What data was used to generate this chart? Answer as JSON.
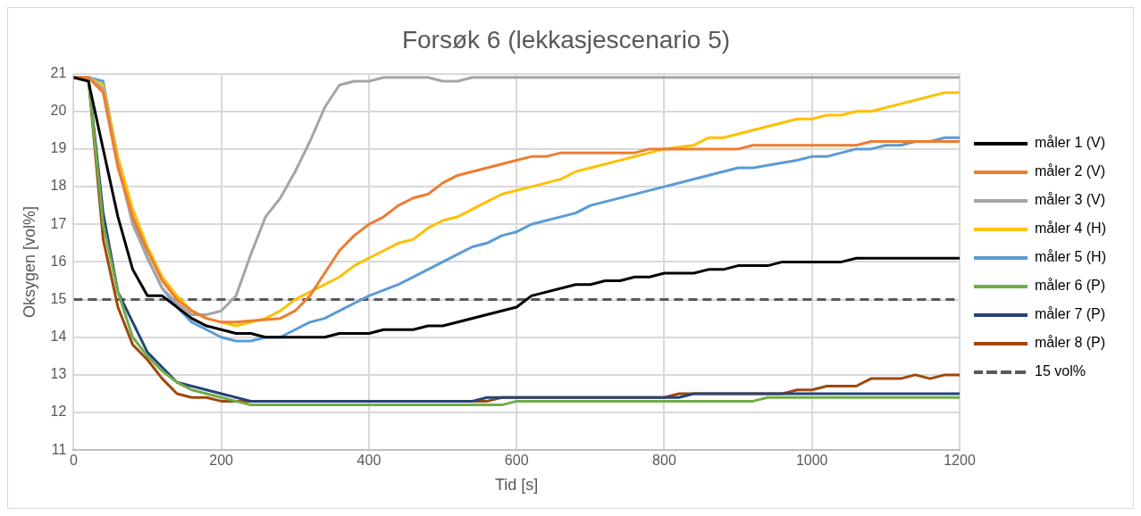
{
  "chart_data": {
    "type": "line",
    "title": "Forsøk 6 (lekkasjescenario 5)",
    "xlabel": "Tid [s]",
    "ylabel": "Oksygen [vol%]",
    "xlim": [
      0,
      1200
    ],
    "xticks": [
      0,
      200,
      400,
      600,
      800,
      1000,
      1200
    ],
    "ylim": [
      11,
      21
    ],
    "yticks": [
      11,
      12,
      13,
      14,
      15,
      16,
      17,
      18,
      19,
      20,
      21
    ],
    "grid": true,
    "legend": "right",
    "marker": "none",
    "line_style": "solid",
    "series": [
      {
        "name": "måler 1 (V)",
        "color": "#000000",
        "x": [
          0,
          20,
          40,
          60,
          80,
          100,
          120,
          140,
          160,
          180,
          200,
          220,
          240,
          260,
          280,
          340,
          360,
          400,
          420,
          460,
          480,
          500,
          600,
          620,
          680,
          700,
          720,
          740,
          760,
          780,
          800,
          840,
          860,
          880,
          900,
          940,
          960,
          1040,
          1060,
          1200
        ],
        "values": [
          20.9,
          20.8,
          19.0,
          17.2,
          15.8,
          15.1,
          15.1,
          14.8,
          14.5,
          14.3,
          14.2,
          14.1,
          14.1,
          14.0,
          14.0,
          14.0,
          14.1,
          14.1,
          14.2,
          14.2,
          14.3,
          14.3,
          14.8,
          15.1,
          15.4,
          15.4,
          15.5,
          15.5,
          15.6,
          15.6,
          15.7,
          15.7,
          15.8,
          15.8,
          15.9,
          15.9,
          16.0,
          16.0,
          16.1,
          16.1
        ]
      },
      {
        "name": "måler 2 (V)",
        "color": "#ed7d31",
        "x": [
          0,
          20,
          40,
          60,
          80,
          100,
          120,
          140,
          160,
          180,
          200,
          220,
          280,
          300,
          320,
          340,
          360,
          380,
          400,
          420,
          440,
          460,
          480,
          500,
          520,
          560,
          600,
          620,
          640,
          660,
          760,
          780,
          900,
          920,
          1060,
          1080,
          1200
        ],
        "values": [
          20.9,
          20.9,
          20.5,
          18.5,
          17.2,
          16.3,
          15.5,
          15.0,
          14.7,
          14.5,
          14.4,
          14.4,
          14.5,
          14.7,
          15.1,
          15.7,
          16.3,
          16.7,
          17.0,
          17.2,
          17.5,
          17.7,
          17.8,
          18.1,
          18.3,
          18.5,
          18.7,
          18.8,
          18.8,
          18.9,
          18.9,
          19.0,
          19.0,
          19.1,
          19.1,
          19.2,
          19.2
        ]
      },
      {
        "name": "måler 3 (V)",
        "color": "#a5a5a5",
        "x": [
          0,
          20,
          40,
          60,
          80,
          100,
          120,
          140,
          160,
          180,
          200,
          220,
          240,
          260,
          280,
          300,
          320,
          340,
          360,
          380,
          400,
          420,
          480,
          500,
          520,
          540,
          1200
        ],
        "values": [
          20.9,
          20.9,
          20.6,
          18.6,
          17.0,
          16.1,
          15.3,
          14.9,
          14.6,
          14.6,
          14.7,
          15.1,
          16.2,
          17.2,
          17.7,
          18.4,
          19.2,
          20.1,
          20.7,
          20.8,
          20.8,
          20.9,
          20.9,
          20.8,
          20.8,
          20.9,
          20.9
        ]
      },
      {
        "name": "måler 4 (H)",
        "color": "#ffc000",
        "x": [
          0,
          20,
          40,
          60,
          80,
          100,
          120,
          140,
          160,
          180,
          200,
          220,
          240,
          260,
          280,
          300,
          320,
          340,
          360,
          380,
          400,
          420,
          440,
          460,
          480,
          500,
          520,
          540,
          560,
          580,
          600,
          620,
          660,
          680,
          700,
          800,
          840,
          860,
          880,
          900,
          980,
          1000,
          1020,
          1040,
          1060,
          1080,
          1180,
          1200
        ],
        "values": [
          20.9,
          20.9,
          20.7,
          18.8,
          17.4,
          16.4,
          15.6,
          15.1,
          14.7,
          14.5,
          14.4,
          14.3,
          14.4,
          14.5,
          14.7,
          15.0,
          15.2,
          15.4,
          15.6,
          15.9,
          16.1,
          16.3,
          16.5,
          16.6,
          16.9,
          17.1,
          17.2,
          17.4,
          17.6,
          17.8,
          17.9,
          18.0,
          18.2,
          18.4,
          18.5,
          19.0,
          19.1,
          19.3,
          19.3,
          19.4,
          19.8,
          19.8,
          19.9,
          19.9,
          20.0,
          20.0,
          20.5,
          20.5
        ]
      },
      {
        "name": "måler 5 (H)",
        "color": "#5b9bd5",
        "x": [
          0,
          20,
          40,
          60,
          80,
          100,
          120,
          140,
          160,
          180,
          200,
          220,
          240,
          260,
          280,
          300,
          320,
          340,
          360,
          380,
          400,
          440,
          480,
          500,
          540,
          560,
          580,
          600,
          620,
          680,
          700,
          800,
          900,
          920,
          980,
          1000,
          1020,
          1060,
          1080,
          1100,
          1120,
          1140,
          1160,
          1180,
          1200
        ],
        "values": [
          20.9,
          20.9,
          20.8,
          18.7,
          17.1,
          16.1,
          15.3,
          14.8,
          14.4,
          14.2,
          14.0,
          13.9,
          13.9,
          14.0,
          14.0,
          14.2,
          14.4,
          14.5,
          14.7,
          14.9,
          15.1,
          15.4,
          15.8,
          16.0,
          16.4,
          16.5,
          16.7,
          16.8,
          17.0,
          17.3,
          17.5,
          18.0,
          18.5,
          18.5,
          18.7,
          18.8,
          18.8,
          19.0,
          19.0,
          19.1,
          19.1,
          19.2,
          19.2,
          19.3,
          19.3
        ]
      },
      {
        "name": "måler 6 (P)",
        "color": "#70ad47",
        "x": [
          0,
          20,
          40,
          60,
          80,
          100,
          120,
          140,
          160,
          180,
          200,
          220,
          240,
          580,
          600,
          920,
          940,
          1200
        ],
        "values": [
          20.9,
          20.9,
          17.0,
          15.2,
          14.0,
          13.5,
          13.1,
          12.8,
          12.6,
          12.5,
          12.4,
          12.3,
          12.2,
          12.2,
          12.3,
          12.3,
          12.4,
          12.4
        ]
      },
      {
        "name": "måler 7 (P)",
        "color": "#264478",
        "x": [
          0,
          20,
          40,
          60,
          80,
          100,
          120,
          140,
          160,
          180,
          200,
          220,
          240,
          540,
          560,
          820,
          840,
          1200
        ],
        "values": [
          20.9,
          20.9,
          17.3,
          15.2,
          14.4,
          13.6,
          13.2,
          12.8,
          12.7,
          12.6,
          12.5,
          12.4,
          12.3,
          12.3,
          12.4,
          12.4,
          12.5,
          12.5
        ]
      },
      {
        "name": "måler 8 (P)",
        "color": "#9e480e",
        "x": [
          0,
          20,
          40,
          60,
          80,
          100,
          120,
          140,
          160,
          180,
          200,
          220,
          560,
          580,
          800,
          820,
          960,
          980,
          1000,
          1020,
          1060,
          1080,
          1120,
          1140,
          1160,
          1180,
          1200
        ],
        "values": [
          20.9,
          20.9,
          16.6,
          14.8,
          13.8,
          13.4,
          12.9,
          12.5,
          12.4,
          12.4,
          12.3,
          12.3,
          12.3,
          12.4,
          12.4,
          12.5,
          12.5,
          12.6,
          12.6,
          12.7,
          12.7,
          12.9,
          12.9,
          13.0,
          12.9,
          13.0,
          13.0
        ]
      }
    ],
    "ref_lines": [
      {
        "axis": "y",
        "value": 15,
        "label": "15 vol%",
        "color": "#595959",
        "line_style": "dashed"
      }
    ]
  }
}
